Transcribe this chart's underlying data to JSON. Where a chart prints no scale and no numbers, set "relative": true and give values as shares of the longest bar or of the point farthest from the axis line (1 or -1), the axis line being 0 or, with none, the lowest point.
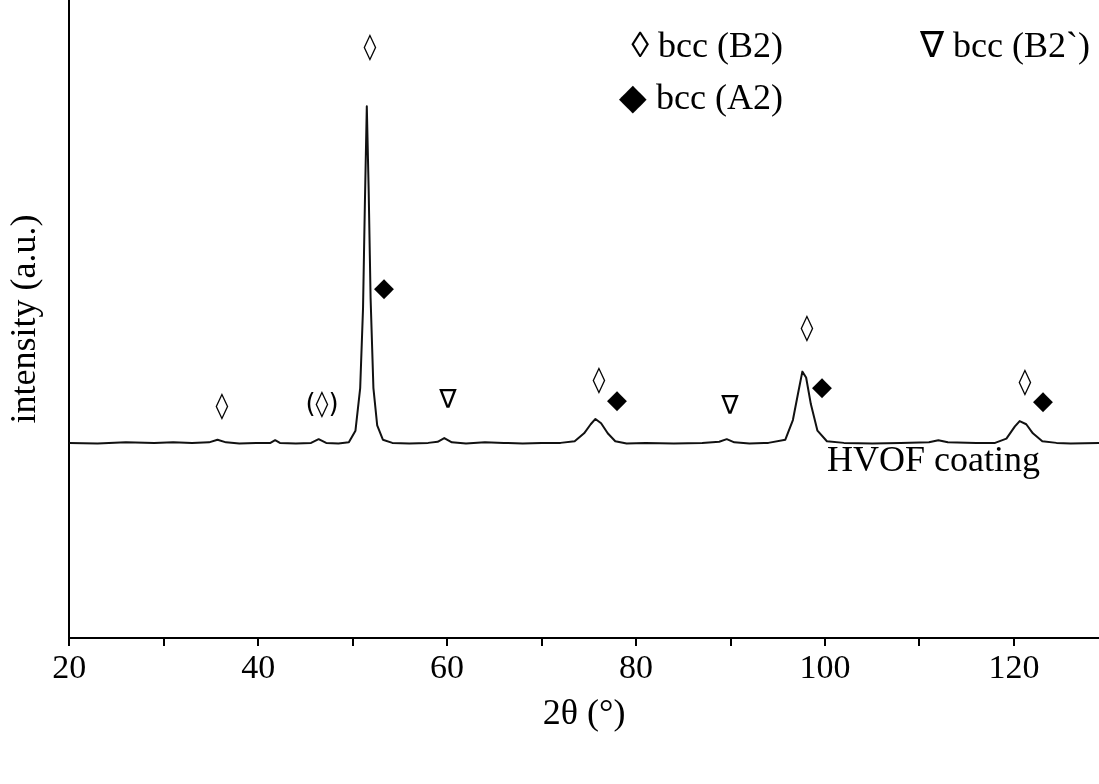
{
  "chart_data": {
    "type": "line",
    "relative": true,
    "xlabel": "2θ (°)",
    "ylabel": "intensity (a.u.)",
    "xlim": [
      20,
      129
    ],
    "xticks": [
      20,
      {
        "value": 30,
        "label": null
      },
      40,
      {
        "value": 50,
        "label": null
      },
      60,
      {
        "value": 70,
        "label": null
      },
      80,
      {
        "value": 90,
        "label": null
      },
      100,
      {
        "value": 110,
        "label": null
      },
      120
    ],
    "tick_labels": "x",
    "grid": false,
    "legend": false,
    "marker": "none",
    "line_style": "solid",
    "series": [
      {
        "color": "#111111",
        "x": [
          20,
          23,
          26,
          29,
          31,
          33,
          34.8,
          35.7,
          36.6,
          38,
          40,
          41.3,
          41.8,
          42.3,
          44,
          45.6,
          46.4,
          47.2,
          48.5,
          49.6,
          50.3,
          50.8,
          51.1,
          51.3,
          51.5,
          51.7,
          51.9,
          52.2,
          52.6,
          53.2,
          54.2,
          56,
          58,
          59,
          59.7,
          60.5,
          62,
          64,
          66,
          68,
          70,
          72,
          73.5,
          74.5,
          75.2,
          75.7,
          76.3,
          77,
          77.8,
          79,
          81,
          84,
          87,
          88.8,
          89.6,
          90.4,
          92,
          94,
          95.8,
          96.6,
          97.2,
          97.6,
          98.0,
          98.5,
          99.2,
          100.2,
          102,
          105,
          108,
          111,
          112,
          113,
          116,
          118,
          119.2,
          120.1,
          120.6,
          121.3,
          122,
          123,
          124.5,
          126,
          129
        ],
        "values": [
          0.367,
          0.366,
          0.368,
          0.367,
          0.368,
          0.367,
          0.368,
          0.373,
          0.368,
          0.366,
          0.367,
          0.367,
          0.372,
          0.367,
          0.366,
          0.367,
          0.374,
          0.367,
          0.366,
          0.368,
          0.39,
          0.47,
          0.62,
          0.82,
          1.0,
          0.84,
          0.64,
          0.47,
          0.4,
          0.373,
          0.367,
          0.366,
          0.367,
          0.369,
          0.376,
          0.368,
          0.366,
          0.368,
          0.367,
          0.366,
          0.367,
          0.367,
          0.37,
          0.385,
          0.402,
          0.412,
          0.404,
          0.385,
          0.37,
          0.366,
          0.367,
          0.366,
          0.367,
          0.369,
          0.374,
          0.368,
          0.366,
          0.367,
          0.373,
          0.41,
          0.465,
          0.501,
          0.49,
          0.44,
          0.39,
          0.37,
          0.367,
          0.366,
          0.367,
          0.368,
          0.372,
          0.368,
          0.367,
          0.367,
          0.375,
          0.398,
          0.408,
          0.402,
          0.385,
          0.37,
          0.367,
          0.366,
          0.367
        ]
      }
    ],
    "annotations": [
      "◊ bcc (B2)",
      "∇ bcc (B2`)",
      "◆ bcc (A2)",
      "HVOF coating",
      "◊",
      "(◊)",
      "◊",
      "◆",
      "∇",
      "◊",
      "◆",
      "∇",
      "◊",
      "◆",
      "◊",
      "◆"
    ]
  }
}
